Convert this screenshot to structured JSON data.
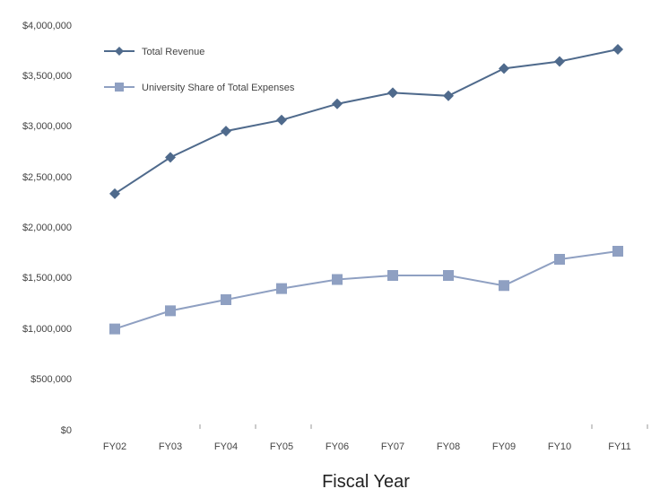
{
  "chart_data": {
    "type": "line",
    "title": "",
    "xlabel": "Fiscal Year",
    "ylabel": "",
    "categories": [
      "FY02",
      "FY03",
      "FY04",
      "FY05",
      "FY06",
      "FY07",
      "FY08",
      "FY09",
      "FY10",
      "FY11"
    ],
    "y_ticks": [
      0,
      500000,
      1000000,
      1500000,
      2000000,
      2500000,
      3000000,
      3500000,
      4000000
    ],
    "y_tick_labels": [
      "$0",
      "$500,000",
      "$1,000,000",
      "$1,500,000",
      "$2,000,000",
      "$2,500,000",
      "$3,000,000",
      "$3,500,000",
      "$4,000,000"
    ],
    "ylim": [
      0,
      4000000
    ],
    "grid": false,
    "legend_position": "top-left",
    "series": [
      {
        "name": "Total Revenue",
        "color": "#4F6A8C",
        "marker": "diamond",
        "values": [
          2330000,
          2690000,
          2950000,
          3060000,
          3220000,
          3330000,
          3300000,
          3570000,
          3640000,
          3760000
        ]
      },
      {
        "name": "University Share of Total Expenses",
        "color": "#8FA0C2",
        "marker": "square",
        "values": [
          990000,
          1170000,
          1280000,
          1390000,
          1480000,
          1520000,
          1520000,
          1420000,
          1680000,
          1760000
        ]
      }
    ]
  }
}
